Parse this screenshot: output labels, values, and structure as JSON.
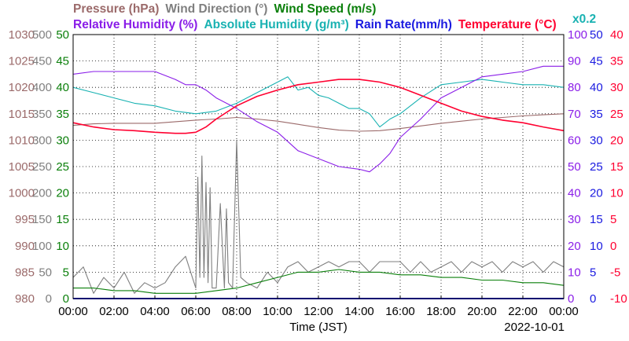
{
  "chart_data": {
    "type": "line",
    "title_row1": [
      {
        "text": "Pressure (hPa)",
        "color": "#9b6a6a"
      },
      {
        "text": "Wind Direction (°)",
        "color": "#7f7f7f"
      },
      {
        "text": "Wind Speed (m/s)",
        "color": "#0a7f0a"
      }
    ],
    "title_row2": [
      {
        "text": "Relative Humidity (%)",
        "color": "#8a1de8"
      },
      {
        "text": "Absolute Humidity (g/m³)",
        "color": "#19b2b2"
      },
      {
        "text": "Rain Rate(mm/h)",
        "color": "#1a1ae0"
      },
      {
        "text": "Temperature (°C)",
        "color": "#ff0030"
      }
    ],
    "rain_scale_label": "x0.2",
    "xlabel": "Time (JST)",
    "date": "2022-10-01",
    "x_ticks": [
      "00:00",
      "02:00",
      "04:00",
      "06:00",
      "08:00",
      "10:00",
      "12:00",
      "14:00",
      "16:00",
      "18:00",
      "20:00",
      "22:00",
      "00:00"
    ],
    "xlim": [
      0,
      24
    ],
    "grid": true,
    "axes": {
      "pressure": {
        "ticks": [
          "980",
          "985",
          "990",
          "995",
          "1000",
          "1005",
          "1010",
          "1015",
          "1020",
          "1025",
          "1030"
        ],
        "color": "#9b6a6a",
        "range": [
          980,
          1030
        ]
      },
      "wind_direction": {
        "ticks": [
          "0",
          "50",
          "100",
          "150",
          "200",
          "250",
          "300",
          "350",
          "400",
          "450",
          "500"
        ],
        "color": "#7f7f7f",
        "range": [
          0,
          500
        ]
      },
      "wind_speed": {
        "ticks": [
          "0",
          "5",
          "10",
          "15",
          "20",
          "25",
          "30",
          "35",
          "40",
          "45",
          "50"
        ],
        "color": "#0a7f0a",
        "range": [
          0,
          50
        ]
      },
      "relative_humidity": {
        "ticks": [
          "0",
          "10",
          "20",
          "30",
          "40",
          "50",
          "60",
          "70",
          "80",
          "90",
          "100"
        ],
        "color": "#8a1de8",
        "range": [
          0,
          100
        ]
      },
      "rain_rate": {
        "ticks": [
          "0",
          "5",
          "10",
          "15",
          "20",
          "25",
          "30",
          "35",
          "40",
          "45",
          "50"
        ],
        "color": "#1a1ae0",
        "range": [
          0,
          50
        ]
      },
      "temperature": {
        "ticks": [
          "-10",
          "-5",
          "0",
          "5",
          "10",
          "15",
          "20",
          "25",
          "30",
          "35",
          "40"
        ],
        "color": "#ff0030",
        "range": [
          -10,
          40
        ]
      }
    },
    "series": [
      {
        "name": "Pressure (hPa)",
        "color": "#9b6a6a",
        "x": [
          0,
          1,
          2,
          3,
          4,
          5,
          6,
          7,
          8,
          9,
          10,
          11,
          12,
          13,
          14,
          15,
          16,
          17,
          18,
          19,
          20,
          21,
          22,
          23,
          24
        ],
        "y": [
          1012.8,
          1013.1,
          1013.2,
          1013.2,
          1013.2,
          1013.5,
          1013.8,
          1014.0,
          1014.3,
          1014.0,
          1013.6,
          1013.0,
          1012.4,
          1011.9,
          1011.7,
          1011.8,
          1012.2,
          1012.7,
          1013.2,
          1013.6,
          1014.0,
          1014.3,
          1014.6,
          1014.8,
          1015.0
        ]
      },
      {
        "name": "Wind Direction (°)",
        "color": "#7f7f7f",
        "x": [
          0,
          0.5,
          1,
          1.5,
          2,
          2.5,
          3,
          3.5,
          4,
          4.5,
          5,
          5.5,
          6,
          6.1,
          6.2,
          6.3,
          6.4,
          6.5,
          6.6,
          6.7,
          6.8,
          7,
          7.2,
          7.4,
          7.5,
          7.6,
          7.8,
          8,
          8.2,
          8.5,
          9,
          9.5,
          10,
          10.5,
          11,
          11.5,
          12,
          12.5,
          13,
          13.5,
          14,
          14.5,
          15,
          15.5,
          16,
          16.5,
          17,
          17.5,
          18,
          18.5,
          19,
          19.5,
          20,
          20.5,
          21,
          21.5,
          22,
          22.5,
          23,
          23.5,
          24
        ],
        "y": [
          40,
          60,
          10,
          40,
          20,
          50,
          10,
          30,
          20,
          30,
          60,
          80,
          20,
          230,
          40,
          270,
          40,
          220,
          30,
          210,
          20,
          20,
          180,
          20,
          170,
          30,
          20,
          300,
          40,
          30,
          20,
          50,
          30,
          60,
          70,
          50,
          60,
          70,
          60,
          70,
          70,
          50,
          70,
          70,
          70,
          50,
          70,
          50,
          60,
          70,
          50,
          70,
          60,
          70,
          50,
          70,
          60,
          70,
          50,
          70,
          60
        ]
      },
      {
        "name": "Wind Speed (m/s)",
        "color": "#0a7f0a",
        "x": [
          0,
          1,
          2,
          3,
          4,
          5,
          6,
          7,
          8,
          9,
          10,
          11,
          12,
          13,
          14,
          15,
          16,
          17,
          18,
          19,
          20,
          21,
          22,
          23,
          24
        ],
        "y": [
          2,
          2,
          1.5,
          1.5,
          1,
          1,
          1,
          1.5,
          2,
          3,
          4,
          5,
          5,
          5.5,
          5,
          5,
          4.5,
          4.5,
          4,
          4,
          3.5,
          3.5,
          3,
          3,
          2.5
        ]
      },
      {
        "name": "Relative Humidity (%)",
        "color": "#8a1de8",
        "x": [
          0,
          1,
          2,
          3,
          4,
          5,
          5.5,
          6,
          6.5,
          7,
          8,
          9,
          10,
          11,
          12,
          13,
          14,
          14.5,
          15,
          15.5,
          16,
          17,
          18,
          19,
          20,
          21,
          22,
          23,
          24
        ],
        "y": [
          85,
          86,
          86,
          86,
          86,
          83,
          81,
          81,
          79,
          76,
          72,
          67,
          63,
          56,
          53,
          50,
          49,
          48,
          51,
          55,
          61,
          68,
          76,
          80,
          84,
          85,
          86,
          88,
          88
        ]
      },
      {
        "name": "Absolute Humidity (g/m³)",
        "color": "#19b2b2",
        "x": [
          0,
          1,
          2,
          3,
          4,
          5,
          6,
          7,
          8,
          9,
          10,
          10.5,
          11,
          11.5,
          12,
          12.5,
          13,
          13.5,
          14,
          14.5,
          15,
          15.5,
          16,
          17,
          18,
          19,
          20,
          21,
          22,
          23,
          24
        ],
        "y": [
          80,
          78,
          76,
          74,
          73,
          71,
          70,
          71,
          74,
          78,
          82,
          84,
          79,
          80,
          77,
          76,
          74,
          72,
          72,
          70,
          65,
          68,
          70,
          76,
          81,
          82,
          83,
          82,
          81,
          81,
          80
        ]
      },
      {
        "name": "Rain Rate(mm/h)",
        "color": "#1a1ae0",
        "x": [
          0,
          24
        ],
        "y": [
          0,
          0
        ]
      },
      {
        "name": "Temperature (°C)",
        "color": "#ff0030",
        "x": [
          0,
          1,
          2,
          3,
          4,
          5,
          5.5,
          6,
          6.5,
          7,
          8,
          9,
          10,
          11,
          12,
          13,
          14,
          15,
          16,
          17,
          18,
          19,
          20,
          21,
          22,
          23,
          24
        ],
        "y": [
          23.3,
          22.5,
          22.0,
          21.8,
          21.5,
          21.3,
          21.3,
          21.5,
          22.5,
          24.0,
          26.5,
          28.3,
          29.5,
          30.5,
          31.0,
          31.5,
          31.5,
          31.0,
          30.0,
          28.5,
          27.0,
          25.5,
          24.5,
          23.8,
          23.3,
          22.5,
          21.8
        ]
      }
    ]
  }
}
